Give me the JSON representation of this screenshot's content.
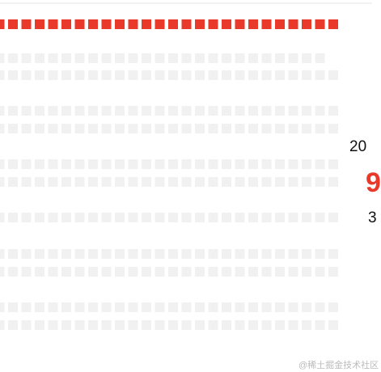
{
  "side_panel": {
    "year_prefix": "20",
    "highlight": "9",
    "sub": "3"
  },
  "watermark": "@稀土掘金技术社区"
}
